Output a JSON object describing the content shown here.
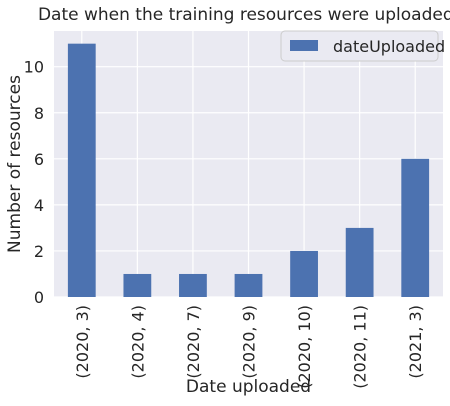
{
  "chart_data": {
    "type": "bar",
    "title": "Date when the training resources were uploaded.",
    "xlabel": "Date uploaded",
    "ylabel": "Number of resources",
    "categories": [
      "(2020, 3)",
      "(2020, 4)",
      "(2020, 7)",
      "(2020, 9)",
      "(2020, 10)",
      "(2020, 11)",
      "(2021, 3)"
    ],
    "series": [
      {
        "name": "dateUploaded",
        "values": [
          11,
          1,
          1,
          1,
          2,
          3,
          6
        ]
      }
    ],
    "ylim": [
      0,
      11.55
    ],
    "yticks": [
      0,
      2,
      4,
      6,
      8,
      10
    ],
    "grid": true,
    "legend_position": "top-right",
    "colors": {
      "background": "#eaeaf2",
      "bar": "#4c72b0",
      "grid": "#ffffff",
      "text": "#262626"
    }
  }
}
